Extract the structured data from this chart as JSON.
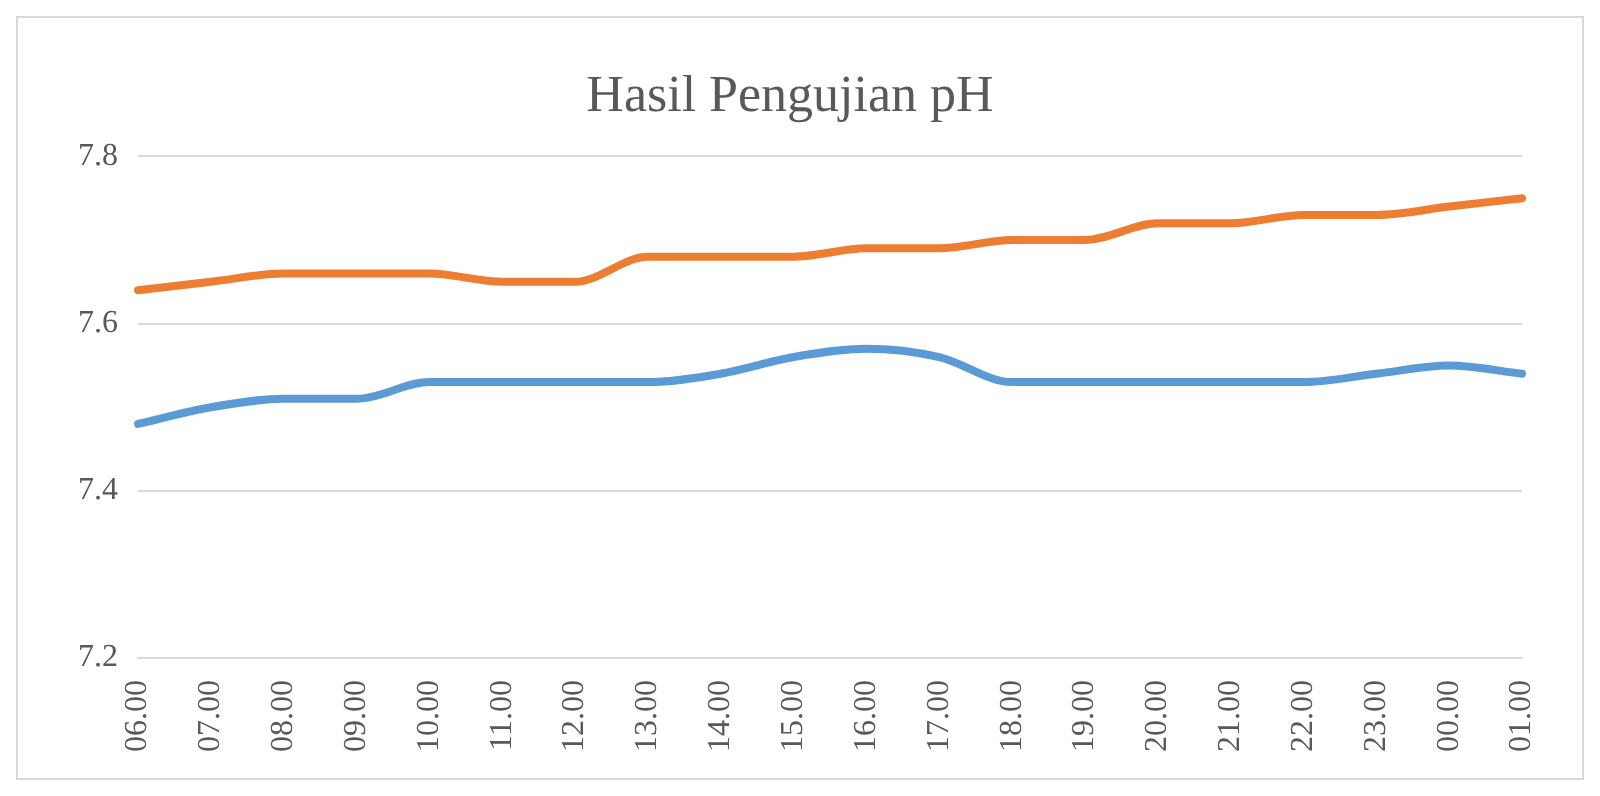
{
  "chart_data": {
    "type": "line",
    "title": "Hasil Pengujian pH",
    "categories": [
      "06.00",
      "07.00",
      "08.00",
      "09.00",
      "10.00",
      "11.00",
      "12.00",
      "13.00",
      "14.00",
      "15.00",
      "16.00",
      "17.00",
      "18.00",
      "19.00",
      "20.00",
      "21.00",
      "22.00",
      "23.00",
      "00.00",
      "01.00"
    ],
    "series": [
      {
        "color": "#5b9bd5",
        "values": [
          7.48,
          7.5,
          7.51,
          7.51,
          7.53,
          7.53,
          7.53,
          7.53,
          7.54,
          7.56,
          7.57,
          7.56,
          7.53,
          7.53,
          7.53,
          7.53,
          7.53,
          7.54,
          7.55,
          7.54
        ]
      },
      {
        "color": "#ed7d31",
        "values": [
          7.64,
          7.65,
          7.66,
          7.66,
          7.66,
          7.65,
          7.65,
          7.68,
          7.68,
          7.68,
          7.69,
          7.69,
          7.7,
          7.7,
          7.72,
          7.72,
          7.73,
          7.73,
          7.74,
          7.75
        ]
      }
    ],
    "ylim": [
      7.2,
      7.8
    ],
    "yticks": [
      7.2,
      7.4,
      7.6,
      7.8
    ],
    "grid": "y",
    "marker": "none",
    "line_style": "solid"
  }
}
